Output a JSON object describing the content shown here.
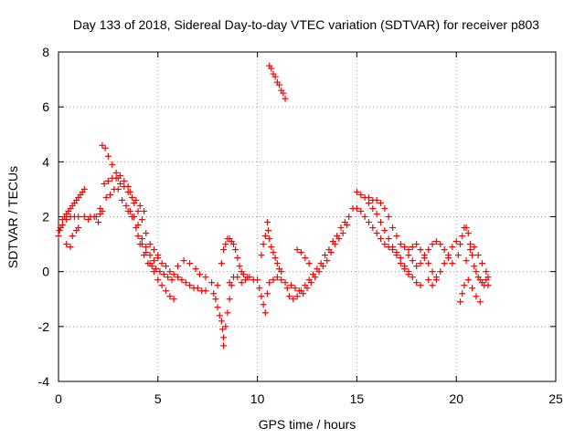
{
  "chart_data": {
    "type": "scatter",
    "title": "Day 133 of 2018, Sidereal Day-to-day VTEC variation (SDTVAR) for receiver p803",
    "xlabel": "GPS time / hours",
    "ylabel": "SDTVAR / TECUs",
    "xlim": [
      0,
      25
    ],
    "ylim": [
      -4,
      8
    ],
    "xticks": [
      "0",
      "5",
      "10",
      "15",
      "20",
      "25"
    ],
    "yticks": [
      "-4",
      "-2",
      "0",
      "2",
      "4",
      "6",
      "8"
    ],
    "grid": true,
    "marker": "+",
    "color": "#ff0000",
    "series": [
      {
        "name": "p803",
        "points": [
          [
            0.0,
            1.3
          ],
          [
            0.1,
            1.6
          ],
          [
            0.2,
            1.9
          ],
          [
            0.3,
            2.0
          ],
          [
            0.4,
            2.1
          ],
          [
            0.5,
            2.2
          ],
          [
            0.6,
            2.3
          ],
          [
            0.7,
            2.4
          ],
          [
            0.8,
            2.5
          ],
          [
            0.9,
            2.6
          ],
          [
            1.0,
            2.7
          ],
          [
            1.1,
            2.8
          ],
          [
            1.2,
            2.9
          ],
          [
            1.3,
            3.0
          ],
          [
            0.05,
            1.5
          ],
          [
            0.2,
            1.7
          ],
          [
            0.4,
            1.9
          ],
          [
            0.6,
            2.0
          ],
          [
            0.8,
            2.0
          ],
          [
            1.0,
            2.0
          ],
          [
            1.3,
            2.0
          ],
          [
            1.6,
            2.0
          ],
          [
            1.9,
            2.0
          ],
          [
            2.1,
            2.1
          ],
          [
            2.2,
            2.2
          ],
          [
            0.4,
            1.0
          ],
          [
            0.6,
            0.9
          ],
          [
            0.7,
            1.3
          ],
          [
            0.9,
            1.5
          ],
          [
            1.0,
            1.6
          ],
          [
            1.5,
            1.9
          ],
          [
            1.8,
            2.0
          ],
          [
            2.0,
            1.8
          ],
          [
            2.1,
            2.3
          ],
          [
            2.2,
            4.6
          ],
          [
            2.35,
            4.5
          ],
          [
            2.5,
            4.2
          ],
          [
            2.7,
            3.9
          ],
          [
            2.9,
            3.6
          ],
          [
            3.0,
            3.4
          ],
          [
            3.1,
            3.2
          ],
          [
            3.3,
            3.1
          ],
          [
            3.5,
            2.9
          ],
          [
            3.7,
            2.7
          ],
          [
            3.9,
            2.6
          ],
          [
            4.1,
            2.4
          ],
          [
            4.3,
            2.2
          ],
          [
            2.3,
            3.2
          ],
          [
            2.5,
            3.3
          ],
          [
            2.7,
            3.4
          ],
          [
            2.9,
            3.4
          ],
          [
            3.1,
            3.5
          ],
          [
            3.3,
            3.3
          ],
          [
            3.5,
            3.1
          ],
          [
            3.6,
            2.9
          ],
          [
            3.8,
            2.5
          ],
          [
            4.0,
            2.2
          ],
          [
            4.2,
            1.9
          ],
          [
            4.4,
            1.4
          ],
          [
            4.6,
            1.0
          ],
          [
            4.8,
            0.8
          ],
          [
            5.0,
            0.6
          ],
          [
            2.4,
            2.7
          ],
          [
            2.6,
            2.8
          ],
          [
            2.8,
            3.0
          ],
          [
            3.0,
            3.0
          ],
          [
            3.2,
            2.6
          ],
          [
            3.4,
            2.4
          ],
          [
            3.6,
            2.2
          ],
          [
            3.8,
            2.0
          ],
          [
            4.0,
            1.7
          ],
          [
            4.2,
            1.2
          ],
          [
            4.4,
            0.9
          ],
          [
            4.6,
            0.6
          ],
          [
            4.8,
            0.4
          ],
          [
            3.5,
            2.2
          ],
          [
            3.7,
            2.0
          ],
          [
            3.9,
            1.6
          ],
          [
            4.1,
            1.0
          ],
          [
            4.3,
            0.6
          ],
          [
            4.5,
            0.3
          ],
          [
            4.7,
            0.2
          ],
          [
            4.9,
            0.1
          ],
          [
            5.1,
            0.0
          ],
          [
            5.3,
            -0.1
          ],
          [
            5.5,
            -0.2
          ],
          [
            5.7,
            -0.3
          ],
          [
            4.0,
            1.3
          ],
          [
            4.2,
            1.0
          ],
          [
            4.4,
            0.7
          ],
          [
            4.6,
            0.3
          ],
          [
            4.8,
            0.0
          ],
          [
            5.0,
            -0.3
          ],
          [
            5.2,
            -0.5
          ],
          [
            5.4,
            -0.7
          ],
          [
            5.6,
            -0.9
          ],
          [
            5.8,
            -1.0
          ],
          [
            5.0,
            0.5
          ],
          [
            5.2,
            0.3
          ],
          [
            5.4,
            0.2
          ],
          [
            5.6,
            0.0
          ],
          [
            5.8,
            -0.1
          ],
          [
            6.0,
            -0.2
          ],
          [
            6.2,
            -0.3
          ],
          [
            6.4,
            -0.4
          ],
          [
            6.6,
            -0.5
          ],
          [
            6.8,
            -0.6
          ],
          [
            7.0,
            -0.6
          ],
          [
            7.2,
            -0.7
          ],
          [
            7.4,
            -0.7
          ],
          [
            6.0,
            0.2
          ],
          [
            6.3,
            0.4
          ],
          [
            6.6,
            0.3
          ],
          [
            6.9,
            0.1
          ],
          [
            7.1,
            -0.1
          ],
          [
            7.4,
            -0.2
          ],
          [
            7.7,
            -0.4
          ],
          [
            8.0,
            -0.5
          ],
          [
            7.8,
            -0.8
          ],
          [
            7.9,
            -1.0
          ],
          [
            8.0,
            -1.3
          ],
          [
            8.1,
            -1.6
          ],
          [
            8.2,
            -1.8
          ],
          [
            8.25,
            -2.1
          ],
          [
            8.3,
            -2.4
          ],
          [
            8.3,
            -2.7
          ],
          [
            8.4,
            -2.0
          ],
          [
            8.5,
            -1.5
          ],
          [
            8.6,
            -1.0
          ],
          [
            8.7,
            -0.5
          ],
          [
            8.2,
            0.3
          ],
          [
            8.3,
            0.8
          ],
          [
            8.4,
            1.0
          ],
          [
            8.5,
            1.2
          ],
          [
            8.6,
            1.2
          ],
          [
            8.7,
            1.1
          ],
          [
            8.8,
            1.0
          ],
          [
            8.9,
            0.8
          ],
          [
            9.0,
            0.5
          ],
          [
            9.1,
            0.2
          ],
          [
            9.2,
            0.0
          ],
          [
            9.3,
            -0.1
          ],
          [
            9.5,
            -0.2
          ],
          [
            8.6,
            -0.4
          ],
          [
            8.8,
            -0.2
          ],
          [
            9.0,
            -0.2
          ],
          [
            9.2,
            -0.4
          ],
          [
            9.4,
            -0.3
          ],
          [
            9.6,
            -0.2
          ],
          [
            9.8,
            -0.3
          ],
          [
            10.2,
            0.6
          ],
          [
            10.3,
            1.0
          ],
          [
            10.4,
            1.3
          ],
          [
            10.5,
            1.8
          ],
          [
            10.55,
            1.5
          ],
          [
            10.6,
            1.2
          ],
          [
            10.7,
            0.9
          ],
          [
            10.8,
            0.7
          ],
          [
            10.9,
            0.5
          ],
          [
            11.0,
            0.3
          ],
          [
            11.1,
            0.1
          ],
          [
            11.2,
            0.0
          ],
          [
            10.0,
            -0.3
          ],
          [
            10.1,
            -0.6
          ],
          [
            10.2,
            -0.9
          ],
          [
            10.3,
            -1.2
          ],
          [
            10.4,
            -1.5
          ],
          [
            10.5,
            -0.8
          ],
          [
            10.6,
            -0.4
          ],
          [
            10.8,
            -0.3
          ],
          [
            11.0,
            -0.2
          ],
          [
            11.2,
            -0.3
          ],
          [
            11.4,
            -0.4
          ],
          [
            10.6,
            7.5
          ],
          [
            10.7,
            7.4
          ],
          [
            10.8,
            7.2
          ],
          [
            10.9,
            7.1
          ],
          [
            11.0,
            6.9
          ],
          [
            11.1,
            6.8
          ],
          [
            11.2,
            6.6
          ],
          [
            11.3,
            6.5
          ],
          [
            11.4,
            6.3
          ],
          [
            11.5,
            -0.6
          ],
          [
            11.7,
            -0.5
          ],
          [
            11.9,
            -0.6
          ],
          [
            12.1,
            -0.7
          ],
          [
            12.3,
            -0.8
          ],
          [
            12.5,
            -0.6
          ],
          [
            12.7,
            -0.4
          ],
          [
            12.9,
            -0.2
          ],
          [
            13.1,
            0.0
          ],
          [
            13.3,
            0.2
          ],
          [
            13.5,
            0.4
          ],
          [
            13.7,
            0.7
          ],
          [
            13.9,
            1.0
          ],
          [
            14.1,
            1.2
          ],
          [
            14.3,
            1.4
          ],
          [
            14.5,
            1.7
          ],
          [
            11.6,
            -0.9
          ],
          [
            11.8,
            -1.0
          ],
          [
            12.0,
            -0.9
          ],
          [
            12.2,
            -0.7
          ],
          [
            12.4,
            -0.5
          ],
          [
            12.6,
            -0.3
          ],
          [
            12.8,
            -0.1
          ],
          [
            13.0,
            0.1
          ],
          [
            13.2,
            0.3
          ],
          [
            13.4,
            0.6
          ],
          [
            13.6,
            0.8
          ],
          [
            13.8,
            1.1
          ],
          [
            14.0,
            1.3
          ],
          [
            14.2,
            1.6
          ],
          [
            14.4,
            1.8
          ],
          [
            14.6,
            2.0
          ],
          [
            14.8,
            2.3
          ],
          [
            12.0,
            0.8
          ],
          [
            12.2,
            0.7
          ],
          [
            12.4,
            0.5
          ],
          [
            12.6,
            0.3
          ],
          [
            15.0,
            2.9
          ],
          [
            15.2,
            2.8
          ],
          [
            15.4,
            2.7
          ],
          [
            15.6,
            2.5
          ],
          [
            15.8,
            2.3
          ],
          [
            16.0,
            2.1
          ],
          [
            16.2,
            1.8
          ],
          [
            16.4,
            1.5
          ],
          [
            16.6,
            1.2
          ],
          [
            16.8,
            0.9
          ],
          [
            17.0,
            0.7
          ],
          [
            17.2,
            0.5
          ],
          [
            17.4,
            0.2
          ],
          [
            17.6,
            0.0
          ],
          [
            17.8,
            -0.2
          ],
          [
            18.0,
            -0.4
          ],
          [
            18.2,
            -0.5
          ],
          [
            15.0,
            2.3
          ],
          [
            15.2,
            2.2
          ],
          [
            15.4,
            2.0
          ],
          [
            15.6,
            1.8
          ],
          [
            15.8,
            1.6
          ],
          [
            16.0,
            1.4
          ],
          [
            16.2,
            1.2
          ],
          [
            16.4,
            1.0
          ],
          [
            16.6,
            0.9
          ],
          [
            16.8,
            0.8
          ],
          [
            17.0,
            0.6
          ],
          [
            17.2,
            0.3
          ],
          [
            17.4,
            0.1
          ],
          [
            17.6,
            -0.1
          ],
          [
            15.6,
            2.7
          ],
          [
            15.8,
            2.6
          ],
          [
            16.0,
            2.6
          ],
          [
            16.2,
            2.5
          ],
          [
            16.4,
            2.3
          ],
          [
            16.6,
            2.0
          ],
          [
            16.8,
            1.6
          ],
          [
            17.0,
            1.3
          ],
          [
            17.2,
            1.0
          ],
          [
            17.4,
            0.9
          ],
          [
            17.6,
            0.8
          ],
          [
            17.8,
            0.9
          ],
          [
            18.0,
            1.0
          ],
          [
            18.2,
            0.8
          ],
          [
            18.4,
            0.6
          ],
          [
            18.6,
            0.3
          ],
          [
            18.8,
            0.0
          ],
          [
            19.0,
            -0.2
          ],
          [
            17.6,
            0.6
          ],
          [
            17.8,
            0.4
          ],
          [
            18.0,
            0.2
          ],
          [
            18.2,
            0.3
          ],
          [
            18.4,
            0.5
          ],
          [
            18.6,
            0.8
          ],
          [
            18.8,
            1.0
          ],
          [
            19.0,
            1.1
          ],
          [
            19.2,
            1.0
          ],
          [
            19.4,
            0.8
          ],
          [
            19.6,
            0.5
          ],
          [
            19.8,
            0.3
          ],
          [
            18.6,
            -0.3
          ],
          [
            18.8,
            -0.5
          ],
          [
            19.0,
            -0.3
          ],
          [
            19.2,
            0.0
          ],
          [
            19.4,
            0.3
          ],
          [
            19.6,
            0.6
          ],
          [
            19.8,
            0.9
          ],
          [
            20.0,
            1.1
          ],
          [
            20.1,
            0.6
          ],
          [
            20.2,
            1.0
          ],
          [
            20.3,
            1.3
          ],
          [
            20.4,
            1.6
          ],
          [
            20.5,
            1.6
          ],
          [
            20.6,
            1.4
          ],
          [
            20.7,
            1.0
          ],
          [
            20.8,
            0.6
          ],
          [
            20.9,
            0.2
          ],
          [
            21.0,
            0.0
          ],
          [
            21.1,
            -0.2
          ],
          [
            21.2,
            -0.3
          ],
          [
            21.3,
            -0.4
          ],
          [
            21.4,
            -0.5
          ],
          [
            21.5,
            -0.3
          ],
          [
            21.6,
            -0.2
          ],
          [
            20.2,
            -1.1
          ],
          [
            20.3,
            -0.8
          ],
          [
            20.4,
            -0.5
          ],
          [
            20.6,
            -0.3
          ],
          [
            20.8,
            -0.6
          ],
          [
            21.0,
            -0.9
          ],
          [
            21.2,
            -1.1
          ],
          [
            20.5,
            0.4
          ],
          [
            20.7,
            0.8
          ],
          [
            20.9,
            0.9
          ],
          [
            21.1,
            0.6
          ],
          [
            21.3,
            0.3
          ],
          [
            21.5,
            0.0
          ],
          [
            21.6,
            -0.5
          ]
        ]
      }
    ]
  }
}
